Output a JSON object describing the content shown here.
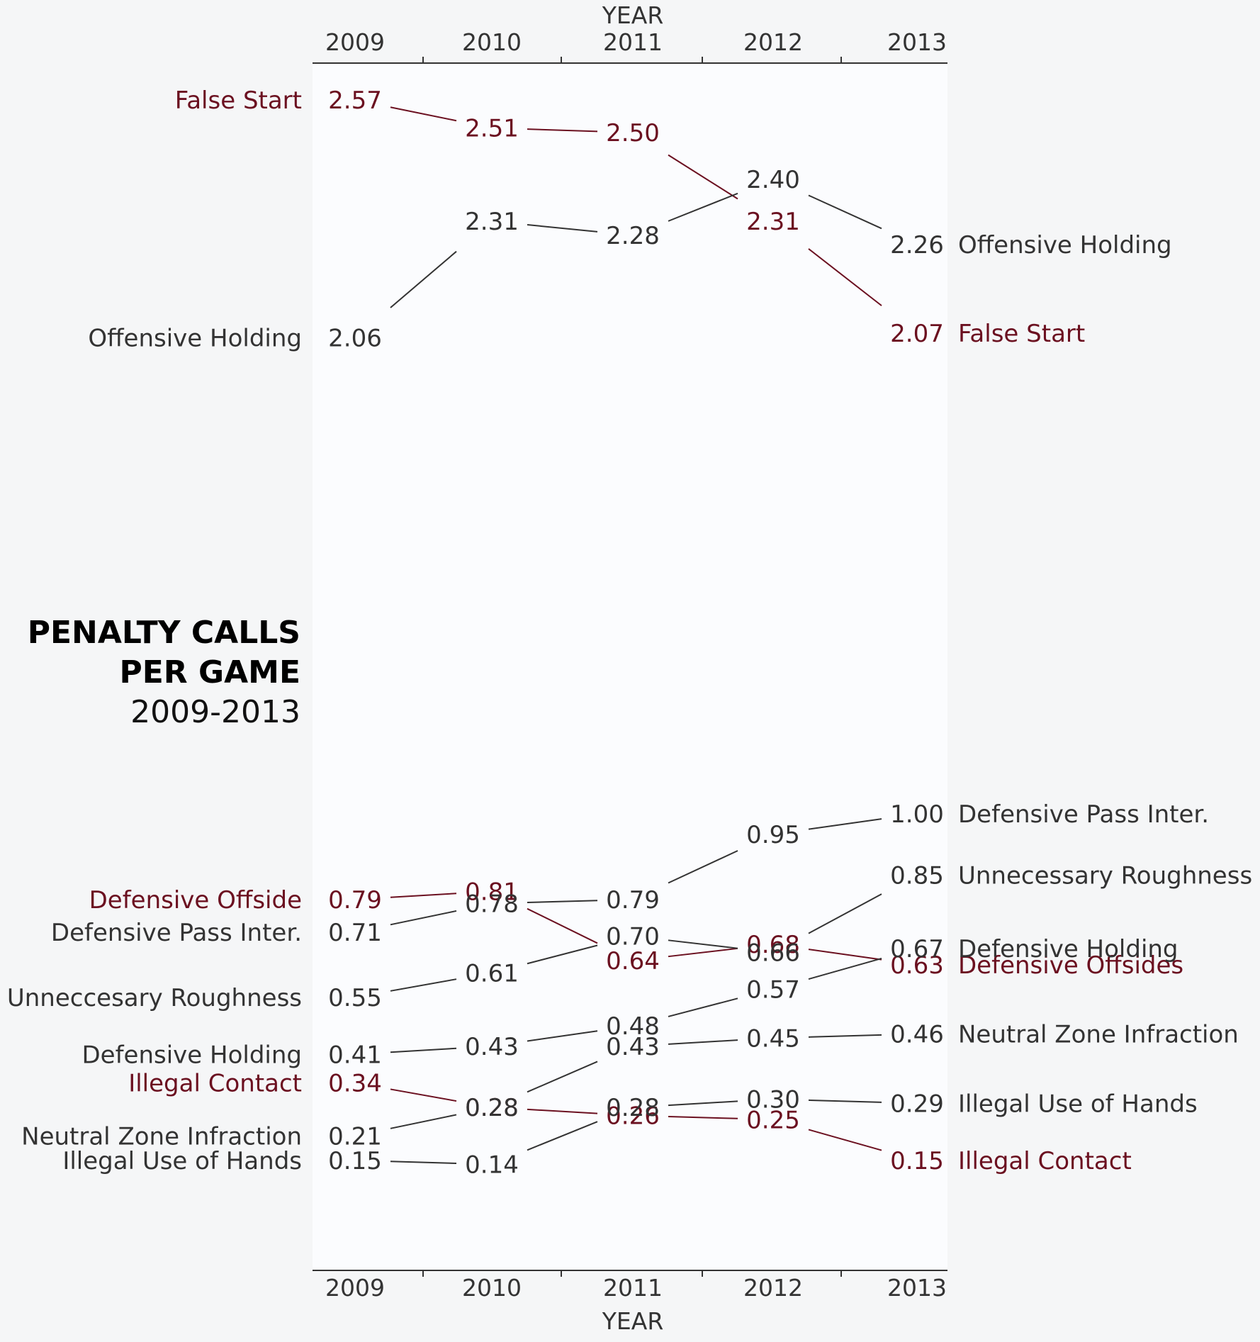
{
  "chart_data": {
    "type": "line",
    "title": "PENALTY CALLS\nPER GAME",
    "subtitle": "2009-2013",
    "xlabel": "YEAR",
    "x": [
      "2009",
      "2010",
      "2011",
      "2012",
      "2013"
    ],
    "colors": {
      "highlight": "#6b1020",
      "normal": "#333333",
      "axis": "#333333"
    },
    "series": [
      {
        "name": "False Start",
        "end_name": "False Start",
        "highlight": true,
        "values": [
          2.57,
          2.51,
          2.5,
          2.31,
          2.07
        ],
        "labels": [
          "2.57",
          "2.51",
          "2.50",
          "2.31",
          "2.07"
        ]
      },
      {
        "name": "Offensive Holding",
        "end_name": "Offensive Holding",
        "highlight": false,
        "values": [
          2.06,
          2.31,
          2.28,
          2.4,
          2.26
        ],
        "labels": [
          "2.06",
          "2.31",
          "2.28",
          "2.40",
          "2.26"
        ]
      },
      {
        "name": "Defensive Offside",
        "end_name": "Defensive Offsides",
        "highlight": true,
        "values": [
          0.79,
          0.81,
          0.64,
          0.68,
          0.63
        ],
        "labels": [
          "0.79",
          "0.81",
          "0.64",
          "0.68",
          "0.63"
        ]
      },
      {
        "name": "Defensive Pass Inter.",
        "end_name": "Defensive Pass Inter.",
        "highlight": false,
        "values": [
          0.71,
          0.78,
          0.79,
          0.95,
          1.0
        ],
        "labels": [
          "0.71",
          "0.78",
          "0.79",
          "0.95",
          "1.00"
        ]
      },
      {
        "name": "Unneccesary Roughness",
        "end_name": "Unnecessary Roughness",
        "highlight": false,
        "values": [
          0.55,
          0.61,
          0.7,
          0.66,
          0.85
        ],
        "labels": [
          "0.55",
          "0.61",
          "0.70",
          "0.66",
          "0.85"
        ]
      },
      {
        "name": "Defensive Holding",
        "end_name": "Defensive Holding",
        "highlight": false,
        "values": [
          0.41,
          0.43,
          0.48,
          0.57,
          0.67
        ],
        "labels": [
          "0.41",
          "0.43",
          "0.48",
          "0.57",
          "0.67"
        ]
      },
      {
        "name": "Illegal Contact",
        "end_name": "Illegal Contact",
        "highlight": true,
        "values": [
          0.34,
          0.28,
          0.26,
          0.25,
          0.15
        ],
        "labels": [
          "0.34",
          "0.28",
          "0.26",
          "0.25",
          "0.15"
        ]
      },
      {
        "name": "Neutral Zone Infraction",
        "end_name": "Neutral Zone Infraction",
        "highlight": false,
        "values": [
          0.21,
          0.28,
          0.43,
          0.45,
          0.46
        ],
        "labels": [
          "0.21",
          "0.28",
          "0.43",
          "0.45",
          "0.46"
        ]
      },
      {
        "name": "Illegal Use of Hands",
        "end_name": "Illegal Use of Hands",
        "highlight": false,
        "values": [
          0.15,
          0.14,
          0.28,
          0.3,
          0.29
        ],
        "labels": [
          "0.15",
          "0.14",
          "0.28",
          "0.30",
          "0.29"
        ]
      }
    ]
  }
}
